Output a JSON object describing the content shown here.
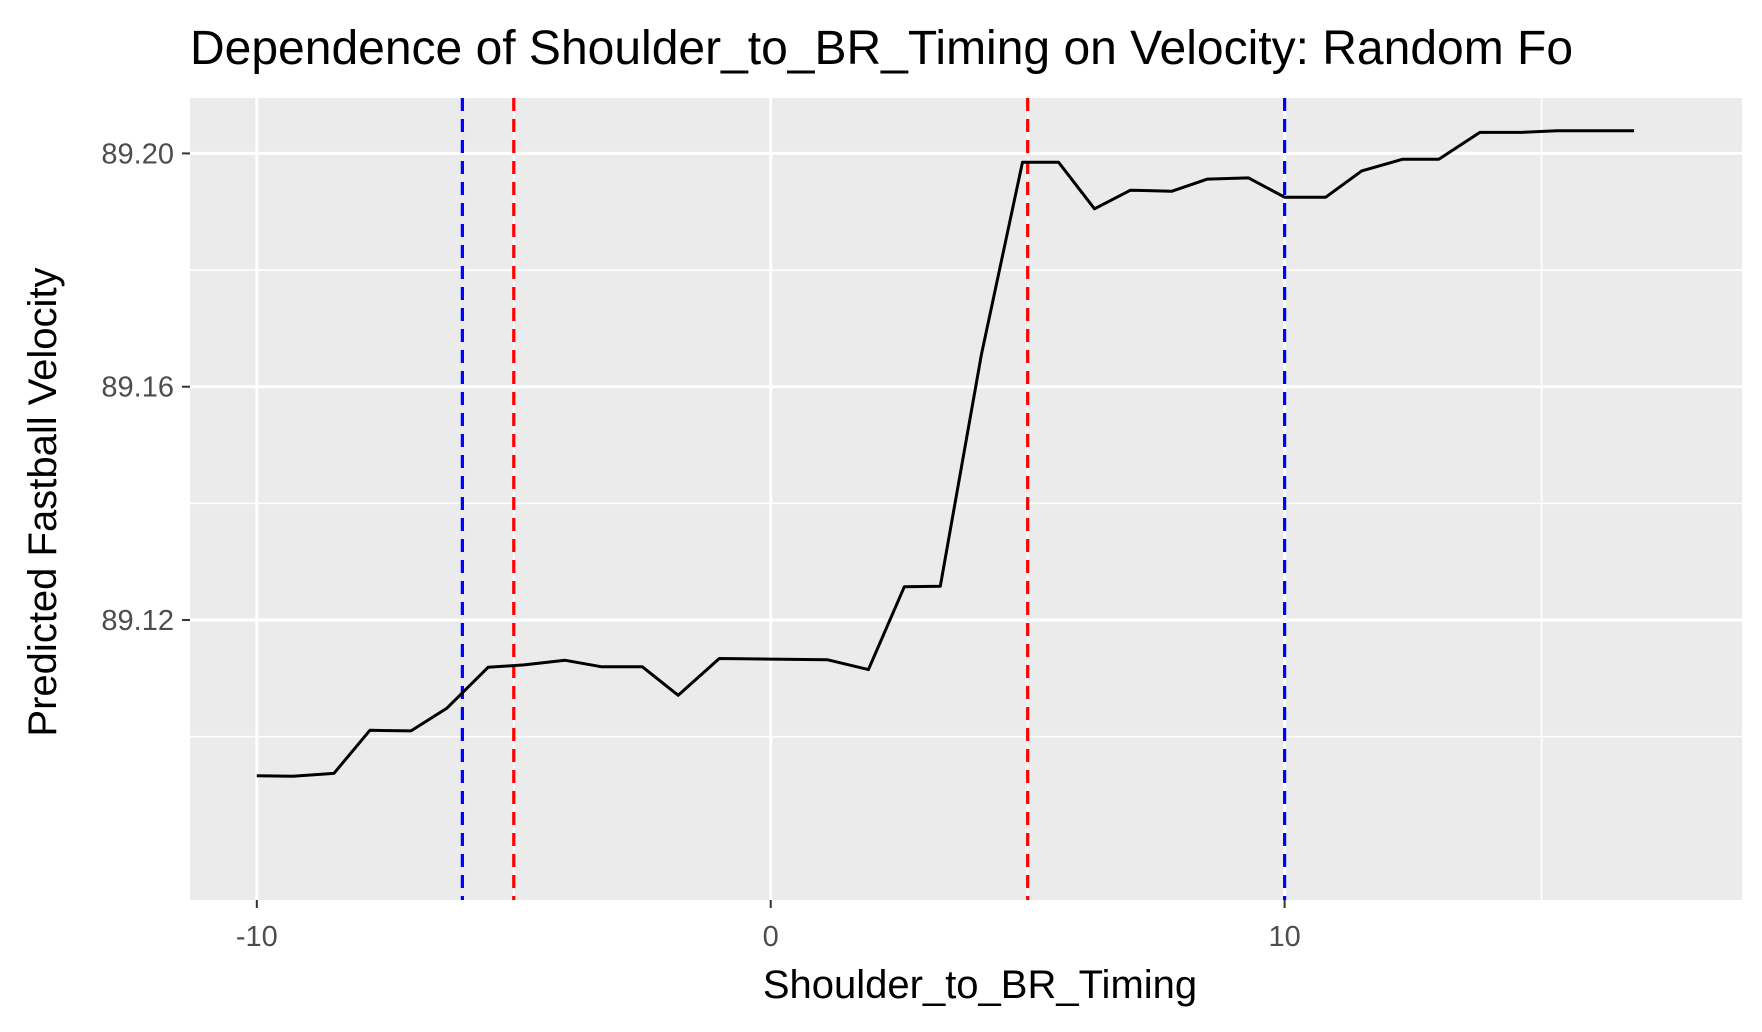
{
  "chart_data": {
    "type": "line",
    "title": "Dependence of Shoulder_to_BR_Timing on Velocity: Random Fo",
    "xlabel": "Shoulder_to_BR_Timing",
    "ylabel": "Predicted Fastball Velocity",
    "xlim": [
      -11.3,
      18.9
    ],
    "ylim": [
      89.072,
      89.2095
    ],
    "x_ticks": [
      -10,
      0,
      10
    ],
    "x_tick_labels": [
      "-10",
      "0",
      "10"
    ],
    "y_ticks": [
      89.12,
      89.16,
      89.2
    ],
    "y_tick_labels": [
      "89.12",
      "89.16",
      "89.20"
    ],
    "grid": true,
    "legend": "none",
    "series": [
      {
        "color": "#000000",
        "x": [
          -10.0,
          -9.3,
          -8.5,
          -7.8,
          -7.0,
          -6.3,
          -5.5,
          -4.8,
          -4.0,
          -3.3,
          -2.5,
          -1.8,
          -1.0,
          0.0,
          1.1,
          1.9,
          2.6,
          3.3,
          4.1,
          4.9,
          5.6,
          6.3,
          7.0,
          7.8,
          8.5,
          9.3,
          10.0,
          10.8,
          11.5,
          12.3,
          13.0,
          13.8,
          14.6,
          15.3,
          16.0,
          16.8
        ],
        "y": [
          89.0933,
          89.0932,
          89.0937,
          89.1011,
          89.101,
          89.1049,
          89.1119,
          89.1123,
          89.1131,
          89.112,
          89.112,
          89.1071,
          89.1134,
          89.1133,
          89.1132,
          89.1115,
          89.1257,
          89.1258,
          89.1655,
          89.1985,
          89.1985,
          89.1905,
          89.1937,
          89.1935,
          89.1956,
          89.1958,
          89.1925,
          89.1925,
          89.197,
          89.199,
          89.199,
          89.2036,
          89.2036,
          89.2039,
          89.2039,
          89.2039
        ]
      }
    ],
    "vlines": [
      {
        "x": -6.0,
        "color": "#0000ff",
        "style": "dashed"
      },
      {
        "x": -5.0,
        "color": "#ff0000",
        "style": "dashed"
      },
      {
        "x": 5.0,
        "color": "#ff0000",
        "style": "dashed"
      },
      {
        "x": 10.0,
        "color": "#0000ff",
        "style": "dashed"
      }
    ],
    "colors": {
      "panel_background": "#ebebeb",
      "grid": "#ffffff",
      "tick_text": "#4d4d4d",
      "tick_mark": "#333333"
    }
  }
}
